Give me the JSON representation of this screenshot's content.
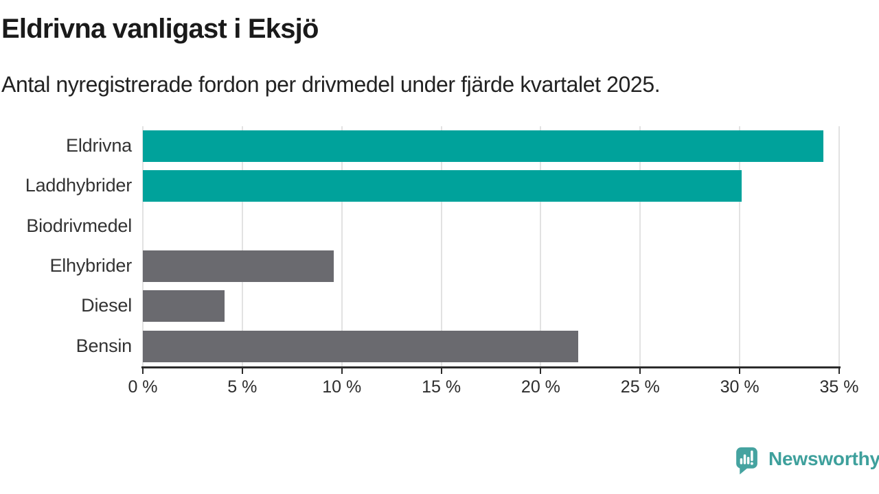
{
  "header": {
    "title": "Eldrivna vanligast i Eksjö",
    "subtitle": "Antal nyregistrerade fordon per drivmedel under fjärde kvartalet 2025."
  },
  "chart_data": {
    "type": "bar",
    "orientation": "horizontal",
    "title": "Eldrivna vanligast i Eksjö",
    "subtitle": "Antal nyregistrerade fordon per drivmedel under fjärde kvartalet 2025.",
    "categories": [
      "Eldrivna",
      "Laddhybrider",
      "Biodrivmedel",
      "Elhybrider",
      "Diesel",
      "Bensin"
    ],
    "values": [
      34.2,
      30.1,
      0,
      9.6,
      4.1,
      21.9
    ],
    "unit": "%",
    "xlim": [
      0,
      35
    ],
    "xticks": [
      0,
      5,
      10,
      15,
      20,
      25,
      30,
      35
    ],
    "xtick_labels": [
      "0 %",
      "5 %",
      "10 %",
      "15 %",
      "20 %",
      "25 %",
      "30 %",
      "35 %"
    ],
    "grid": "vertical-gridlines-on",
    "legend": "none",
    "bar_colors": [
      "#00a29b",
      "#00a29b",
      "#6a6a6f",
      "#6a6a6f",
      "#6a6a6f",
      "#6a6a6f"
    ],
    "highlight_color": "#00a29b",
    "default_color": "#6a6a6f"
  },
  "footer": {
    "brand_label": "Newsworthy",
    "logo_icon": "newsworthy-speech-bubble-bar-chart-icon",
    "brand_text_color": "#3ea09c",
    "brand_icon_color": "#45a3a0"
  },
  "colors": {
    "background": "#ffffff",
    "title": "#1a1a1a",
    "subtitle": "#222222",
    "category_label": "#333333",
    "tick_label": "#2d2d2d",
    "axis": "#2b2b2b",
    "gridline": "#e2e2e2"
  }
}
